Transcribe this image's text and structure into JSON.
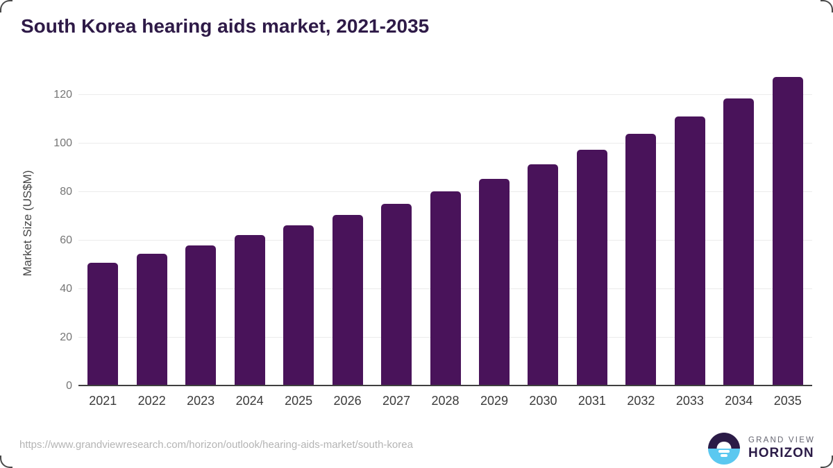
{
  "header": {
    "title": "South Korea hearing aids market, 2021-2035"
  },
  "chart_data": {
    "type": "bar",
    "title": "South Korea hearing aids market, 2021-2035",
    "categories": [
      "2021",
      "2022",
      "2023",
      "2024",
      "2025",
      "2026",
      "2027",
      "2028",
      "2029",
      "2030",
      "2031",
      "2032",
      "2033",
      "2034",
      "2035"
    ],
    "values": [
      50.9,
      54.6,
      58.1,
      62.2,
      66.2,
      70.5,
      75.1,
      80.2,
      85.5,
      91.3,
      97.4,
      104.0,
      111.2,
      118.7,
      127.3
    ],
    "xlabel": "",
    "ylabel": "Market Size (US$M)",
    "ylim": [
      0,
      130
    ],
    "yticks": [
      0,
      20,
      40,
      60,
      80,
      100,
      120
    ],
    "grid": true,
    "legend_position": "none"
  },
  "footer": {
    "source_url": "https://www.grandviewresearch.com/horizon/outlook/hearing-aids-market/south-korea",
    "brand": {
      "line1": "GRAND VIEW",
      "line2": "HORIZON"
    }
  },
  "colors": {
    "title_text": "#2E1A47",
    "bar": "#49135A",
    "gridline": "#EBEBEB",
    "axis_line": "#3F3F3F",
    "y_tick_label": "#757575",
    "x_tick_label": "#3A3A3A",
    "source_url_text": "#B4B4B4",
    "logo_dark": "#2B1B47",
    "logo_blue": "#5BC8F0",
    "logo_gray_text": "#63636F"
  }
}
